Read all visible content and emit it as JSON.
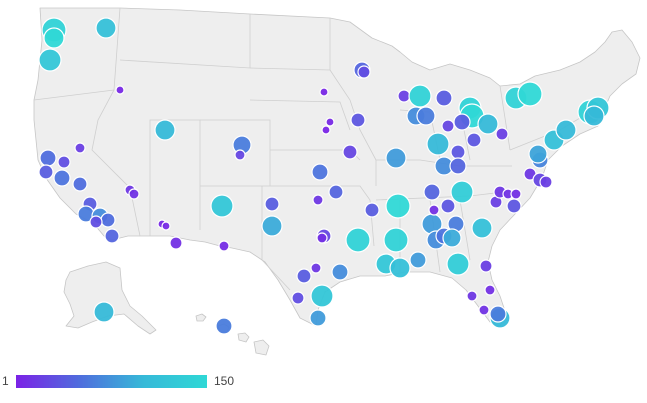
{
  "map": {
    "region": "United States",
    "colors": {
      "low": "#7b22e6",
      "mid": "#4f8ddd",
      "high": "#2fd8d6",
      "land": "#eeeeee",
      "border": "#c6c6c6"
    }
  },
  "legend": {
    "min_label": "1",
    "max_label": "150",
    "min": 1,
    "max": 150
  },
  "chart_data": {
    "type": "bubble-map",
    "color_scale": {
      "min": 1,
      "max": 150,
      "colors": [
        "#7b22e6",
        "#2fd8d6"
      ]
    }
  }
}
